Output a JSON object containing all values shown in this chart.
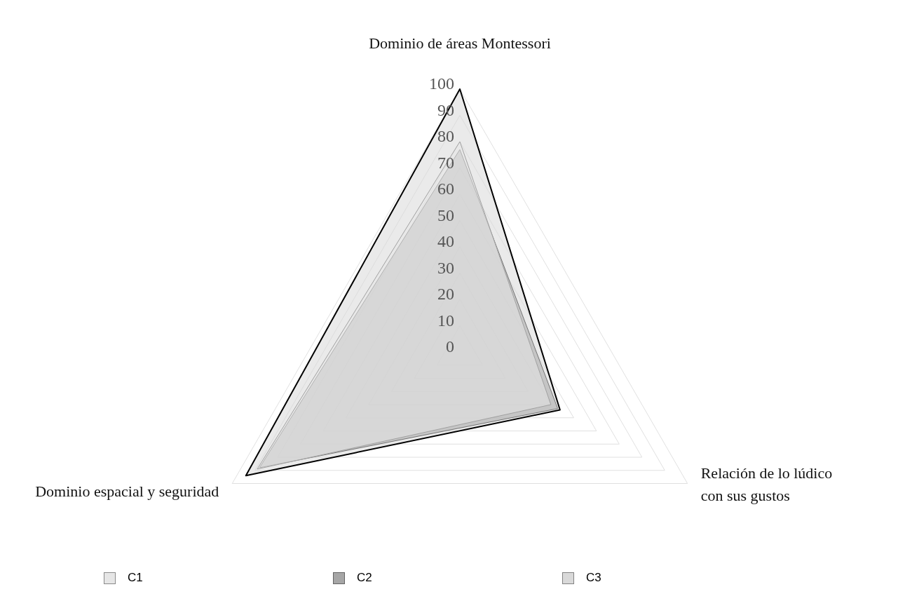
{
  "chart_data": {
    "type": "radar",
    "categories": [
      "Dominio de áreas Montessori",
      "Relación de lo lúdico con sus gustos",
      "Dominio espacial y seguridad"
    ],
    "series": [
      {
        "name": "C1",
        "color": "#e6e6e6",
        "values": [
          80,
          40,
          89
        ]
      },
      {
        "name": "C2",
        "color": "#a6a6a6",
        "values": [
          77,
          43,
          88
        ]
      },
      {
        "name": "C3",
        "color": "#d9d9d9",
        "values": [
          100,
          44,
          94
        ]
      }
    ],
    "ylim": [
      0,
      100
    ],
    "yticks": [
      0,
      10,
      20,
      30,
      40,
      50,
      60,
      70,
      80,
      90,
      100
    ],
    "legend": "bottom",
    "grid": true
  }
}
